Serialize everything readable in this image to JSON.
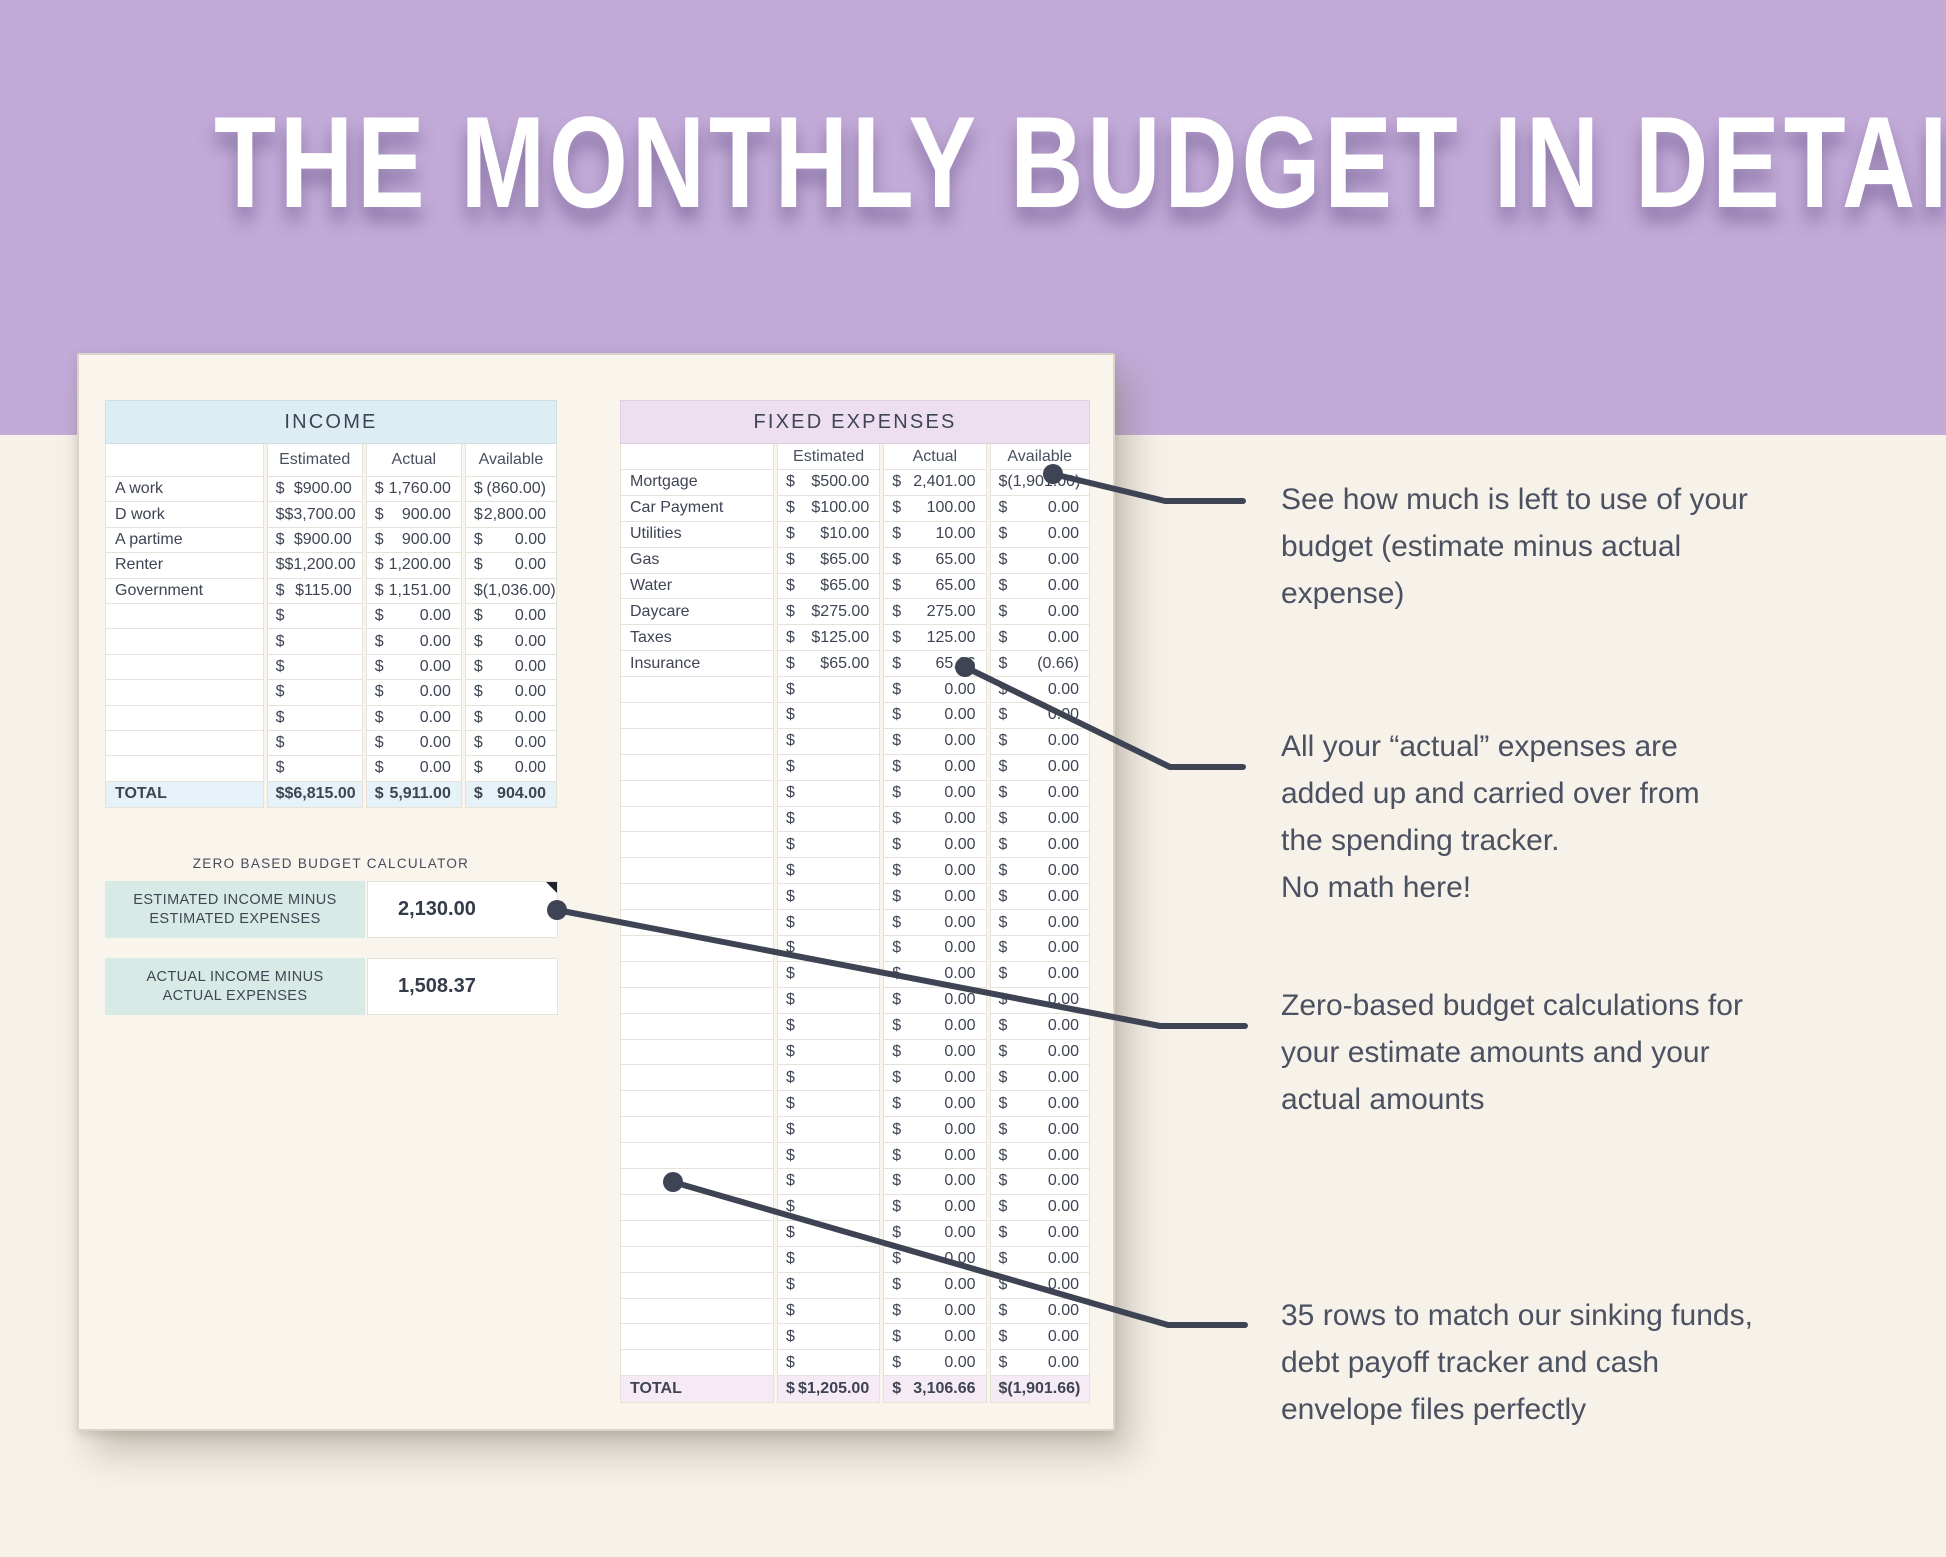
{
  "title": "THE MONTHLY BUDGET IN DETAIL",
  "income_table": {
    "header": "INCOME",
    "columns": [
      "Estimated",
      "Actual",
      "Available"
    ],
    "rows": [
      {
        "label": "A work",
        "estimated": "$900.00",
        "actual": "1,760.00",
        "available": "(860.00)"
      },
      {
        "label": "D work",
        "estimated": "$3,700.00",
        "actual": "900.00",
        "available": "2,800.00"
      },
      {
        "label": "A partime",
        "estimated": "$900.00",
        "actual": "900.00",
        "available": "0.00"
      },
      {
        "label": "Renter",
        "estimated": "$1,200.00",
        "actual": "1,200.00",
        "available": "0.00"
      },
      {
        "label": "Government",
        "estimated": "$115.00",
        "actual": "1,151.00",
        "available": "(1,036.00)"
      },
      {
        "label": "",
        "estimated": "",
        "actual": "0.00",
        "available": "0.00"
      },
      {
        "label": "",
        "estimated": "",
        "actual": "0.00",
        "available": "0.00"
      },
      {
        "label": "",
        "estimated": "",
        "actual": "0.00",
        "available": "0.00"
      },
      {
        "label": "",
        "estimated": "",
        "actual": "0.00",
        "available": "0.00"
      },
      {
        "label": "",
        "estimated": "",
        "actual": "0.00",
        "available": "0.00"
      },
      {
        "label": "",
        "estimated": "",
        "actual": "0.00",
        "available": "0.00"
      },
      {
        "label": "",
        "estimated": "",
        "actual": "0.00",
        "available": "0.00"
      }
    ],
    "total": {
      "label": "TOTAL",
      "estimated": "$6,815.00",
      "actual": "5,911.00",
      "available": "904.00"
    }
  },
  "calculator": {
    "title": "ZERO BASED BUDGET CALCULATOR",
    "rows": [
      {
        "label": "ESTIMATED INCOME MINUS ESTIMATED EXPENSES",
        "value": "2,130.00",
        "has_comment_marker": true
      },
      {
        "label": "ACTUAL INCOME MINUS ACTUAL EXPENSES",
        "value": "1,508.37",
        "has_comment_marker": false
      }
    ]
  },
  "expenses_table": {
    "header": "FIXED EXPENSES",
    "columns": [
      "Estimated",
      "Actual",
      "Available"
    ],
    "rows": [
      {
        "label": "Mortgage",
        "estimated": "$500.00",
        "actual": "2,401.00",
        "available": "(1,901.00)"
      },
      {
        "label": "Car Payment",
        "estimated": "$100.00",
        "actual": "100.00",
        "available": "0.00"
      },
      {
        "label": "Utilities",
        "estimated": "$10.00",
        "actual": "10.00",
        "available": "0.00"
      },
      {
        "label": "Gas",
        "estimated": "$65.00",
        "actual": "65.00",
        "available": "0.00"
      },
      {
        "label": "Water",
        "estimated": "$65.00",
        "actual": "65.00",
        "available": "0.00"
      },
      {
        "label": "Daycare",
        "estimated": "$275.00",
        "actual": "275.00",
        "available": "0.00"
      },
      {
        "label": "Taxes",
        "estimated": "$125.00",
        "actual": "125.00",
        "available": "0.00"
      },
      {
        "label": "Insurance",
        "estimated": "$65.00",
        "actual": "65.66",
        "available": "(0.66)"
      },
      {
        "label": "",
        "estimated": "",
        "actual": "0.00",
        "available": "0.00"
      },
      {
        "label": "",
        "estimated": "",
        "actual": "0.00",
        "available": "0.00"
      },
      {
        "label": "",
        "estimated": "",
        "actual": "0.00",
        "available": "0.00"
      },
      {
        "label": "",
        "estimated": "",
        "actual": "0.00",
        "available": "0.00"
      },
      {
        "label": "",
        "estimated": "",
        "actual": "0.00",
        "available": "0.00"
      },
      {
        "label": "",
        "estimated": "",
        "actual": "0.00",
        "available": "0.00"
      },
      {
        "label": "",
        "estimated": "",
        "actual": "0.00",
        "available": "0.00"
      },
      {
        "label": "",
        "estimated": "",
        "actual": "0.00",
        "available": "0.00"
      },
      {
        "label": "",
        "estimated": "",
        "actual": "0.00",
        "available": "0.00"
      },
      {
        "label": "",
        "estimated": "",
        "actual": "0.00",
        "available": "0.00"
      },
      {
        "label": "",
        "estimated": "",
        "actual": "0.00",
        "available": "0.00"
      },
      {
        "label": "",
        "estimated": "",
        "actual": "0.00",
        "available": "0.00"
      },
      {
        "label": "",
        "estimated": "",
        "actual": "0.00",
        "available": "0.00"
      },
      {
        "label": "",
        "estimated": "",
        "actual": "0.00",
        "available": "0.00"
      },
      {
        "label": "",
        "estimated": "",
        "actual": "0.00",
        "available": "0.00"
      },
      {
        "label": "",
        "estimated": "",
        "actual": "0.00",
        "available": "0.00"
      },
      {
        "label": "",
        "estimated": "",
        "actual": "0.00",
        "available": "0.00"
      },
      {
        "label": "",
        "estimated": "",
        "actual": "0.00",
        "available": "0.00"
      },
      {
        "label": "",
        "estimated": "",
        "actual": "0.00",
        "available": "0.00"
      },
      {
        "label": "",
        "estimated": "",
        "actual": "0.00",
        "available": "0.00"
      },
      {
        "label": "",
        "estimated": "",
        "actual": "0.00",
        "available": "0.00"
      },
      {
        "label": "",
        "estimated": "",
        "actual": "0.00",
        "available": "0.00"
      },
      {
        "label": "",
        "estimated": "",
        "actual": "0.00",
        "available": "0.00"
      },
      {
        "label": "",
        "estimated": "",
        "actual": "0.00",
        "available": "0.00"
      },
      {
        "label": "",
        "estimated": "",
        "actual": "0.00",
        "available": "0.00"
      },
      {
        "label": "",
        "estimated": "",
        "actual": "0.00",
        "available": "0.00"
      },
      {
        "label": "",
        "estimated": "",
        "actual": "0.00",
        "available": "0.00"
      }
    ],
    "total": {
      "label": "TOTAL",
      "estimated": "$1,205.00",
      "actual": "3,106.66",
      "available": "(1,901.66)"
    }
  },
  "annotations": [
    {
      "text": "See how much is left to use of your\nbudget (estimate minus actual\nexpense)"
    },
    {
      "text": "All your “actual” expenses are\nadded up and carried over from\nthe spending tracker.\nNo math here!"
    },
    {
      "text": "Zero-based budget calculations for\nyour estimate amounts and your\nactual amounts"
    },
    {
      "text": "35 rows to match our sinking funds,\ndebt payoff tracker and cash\nenvelope files perfectly"
    }
  ],
  "colors": {
    "banner": "#c2abd8",
    "page_background": "#f6f1e9",
    "card_background": "#f9f4ec",
    "income_header": "#ddedf4",
    "income_total": "#e7f2f8",
    "expenses_header": "#eddff0",
    "expenses_total": "#f6eaf4",
    "calculator_label": "#d8eae5",
    "text": "#3e4453",
    "annotation_text": "#4b5161",
    "connector": "#3e4453"
  }
}
